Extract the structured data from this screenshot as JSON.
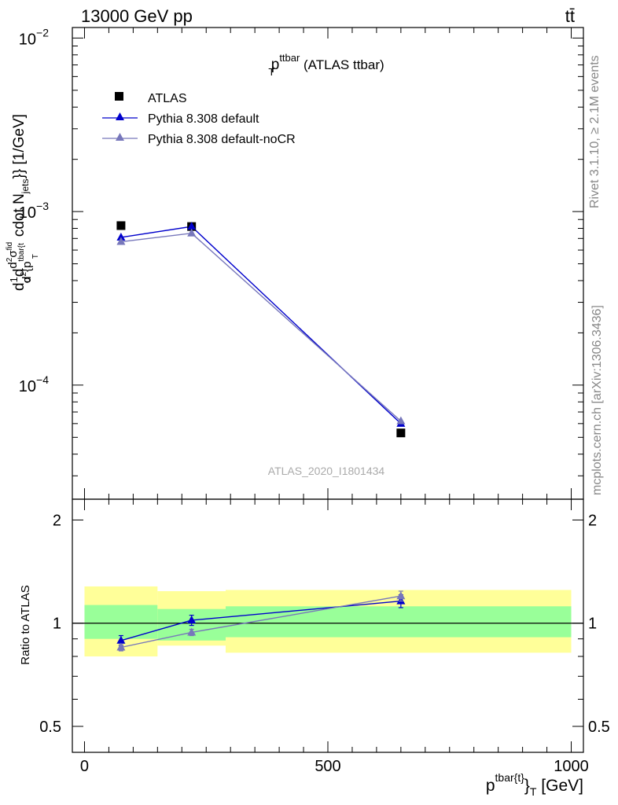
{
  "header": {
    "energy_label": "13000 GeV pp",
    "process_label": "tt̄"
  },
  "side_labels": {
    "rivet": "Rivet 3.1.10, ≥ 2.1M events",
    "mcplots": "mcplots.cern.ch [arXiv:1306.3436]"
  },
  "watermark": "ATLAS_2020_I1801434",
  "chart_data": [
    {
      "type": "line",
      "panel": "main",
      "title": {
        "main": "p",
        "sup": "ttbar",
        "sub": "T",
        "suffix": " (ATLAS ttbar)"
      },
      "ylabel": "d1/σ d d²σ^{fid}/d² {p_T^{tbar{t}} cdot N_{jets}} [1/GeV]",
      "ylabel_parts": {
        "frac1_num": "d",
        "frac1_num2": "1",
        "frac1_den": "σ",
        "frac1_tail": "d",
        "frac2_num": "d",
        "frac2_num_sup1": "2",
        "frac2_num_sigma": "σ",
        "frac2_num_sup2": "fid",
        "frac2_den": "d",
        "frac2_den_sup": "2",
        "frac2_den_rest": "{p",
        "frac2_den_sup2": "tbar{t",
        "frac2_den_sub": "T",
        "tail_text": "cdot N",
        "tail_sub": "jets",
        "tail_end": "}} [1/GeV]"
      },
      "x": [
        75,
        220,
        650
      ],
      "xlim": [
        -25,
        1025
      ],
      "ylim": [
        2.2e-05,
        0.0115
      ],
      "yscale": "log",
      "y_ticks": [
        {
          "value": 0.0001,
          "base": "10",
          "exp": "−4"
        },
        {
          "value": 0.001,
          "base": "10",
          "exp": "−3"
        },
        {
          "value": 0.01,
          "base": "10",
          "exp": "−2"
        }
      ],
      "legend_position": "top-left",
      "series": [
        {
          "name": "ATLAS",
          "marker": "square",
          "color": "#000000",
          "values": [
            0.00083,
            0.00082,
            5.3e-05
          ]
        },
        {
          "name": "Pythia 8.308 default",
          "marker": "triangle",
          "color": "#0000cc",
          "values": [
            0.00071,
            0.00082,
            6e-05
          ]
        },
        {
          "name": "Pythia 8.308 default-noCR",
          "marker": "triangle",
          "color": "#7777bb",
          "values": [
            0.00067,
            0.00075,
            6.2e-05
          ]
        }
      ]
    },
    {
      "type": "line",
      "panel": "ratio",
      "ylabel": "Ratio to ATLAS",
      "xlabel": {
        "main": "p",
        "sup": "tbar{t}",
        "rest": "}",
        "sub": "T",
        "unit": " [GeV]"
      },
      "x": [
        75,
        220,
        650
      ],
      "xlim": [
        -25,
        1025
      ],
      "x_ticks": [
        0,
        500,
        1000
      ],
      "ylim": [
        0.42,
        2.3
      ],
      "yscale": "log",
      "y_ticks": [
        0.5,
        1,
        2
      ],
      "bands": [
        {
          "x0": 0,
          "x1": 150,
          "green": [
            0.9,
            1.13
          ],
          "yellow": [
            0.8,
            1.28
          ]
        },
        {
          "x0": 150,
          "x1": 290,
          "green": [
            0.89,
            1.1
          ],
          "yellow": [
            0.86,
            1.24
          ]
        },
        {
          "x0": 290,
          "x1": 1000,
          "green": [
            0.91,
            1.12
          ],
          "yellow": [
            0.82,
            1.25
          ]
        }
      ],
      "series": [
        {
          "name": "Pythia 8.308 default",
          "color": "#0000cc",
          "values": [
            0.89,
            1.02,
            1.16
          ],
          "errors": [
            0.03,
            0.035,
            0.05
          ]
        },
        {
          "name": "Pythia 8.308 default-noCR",
          "color": "#7777bb",
          "values": [
            0.85,
            0.94,
            1.2
          ],
          "errors": [
            0.02,
            0.02,
            0.04
          ]
        }
      ]
    }
  ]
}
